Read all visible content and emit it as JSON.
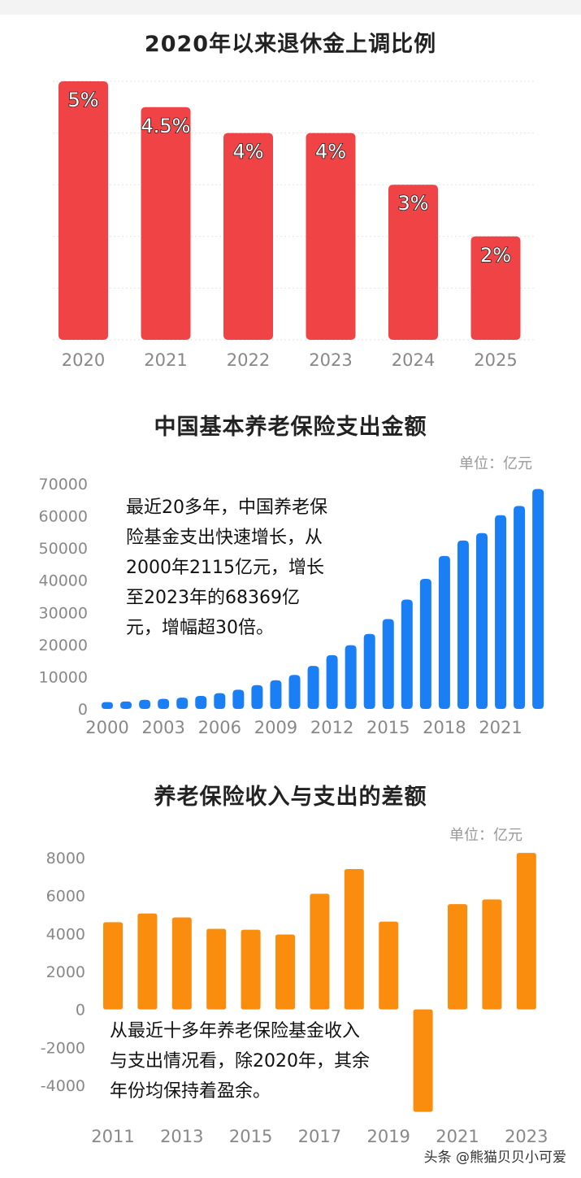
{
  "chart_data": [
    {
      "type": "bar",
      "title": "2020年以来退休金上调比例",
      "categories": [
        "2020",
        "2021",
        "2022",
        "2023",
        "2024",
        "2025"
      ],
      "values": [
        5,
        4.5,
        4,
        4,
        3,
        2
      ],
      "data_labels": [
        "5%",
        "4.5%",
        "4%",
        "4%",
        "3%",
        "2%"
      ],
      "ylim": [
        0,
        5
      ],
      "grid": true,
      "color": "#f04346"
    },
    {
      "type": "bar",
      "title": "中国基本养老保险支出金额",
      "unit": "单位：亿元",
      "x": [
        2000,
        2001,
        2002,
        2003,
        2004,
        2005,
        2006,
        2007,
        2008,
        2009,
        2010,
        2011,
        2012,
        2013,
        2014,
        2015,
        2016,
        2017,
        2018,
        2019,
        2020,
        2021,
        2022,
        2023
      ],
      "values": [
        2115,
        2321,
        2843,
        3122,
        3502,
        4040,
        4897,
        5965,
        7390,
        8894,
        10555,
        13363,
        16712,
        19819,
        23326,
        27929,
        34004,
        40424,
        47550,
        52342,
        54656,
        60197,
        63079,
        68369
      ],
      "x_tick_labels": [
        "2000",
        "2003",
        "2006",
        "2009",
        "2012",
        "2015",
        "2018",
        "2021"
      ],
      "y_ticks": [
        "70000",
        "60000",
        "50000",
        "40000",
        "30000",
        "20000",
        "10000",
        "0"
      ],
      "ylim": [
        0,
        70000
      ],
      "annotation": [
        "最近20多年，中国养老保",
        "险基金支出快速增长，从",
        "2000年2115亿元，增长",
        "至2023年的68369亿",
        "元，增幅超30倍。"
      ],
      "color": "#1a7ef5"
    },
    {
      "type": "bar",
      "title": "养老保险收入与支出的差额",
      "unit": "单位：亿元",
      "x": [
        2011,
        2012,
        2013,
        2014,
        2015,
        2016,
        2017,
        2018,
        2019,
        2020,
        2021,
        2022,
        2023
      ],
      "values": [
        4600,
        5060,
        4850,
        4250,
        4200,
        3950,
        6100,
        7400,
        4630,
        -5400,
        5550,
        5800,
        8250
      ],
      "x_tick_labels": [
        "2011",
        "2013",
        "2015",
        "2017",
        "2019",
        "2021",
        "2023"
      ],
      "y_ticks": [
        "8000",
        "6000",
        "4000",
        "2000",
        "0",
        "-2000",
        "-4000"
      ],
      "ylim": [
        -6000,
        8000
      ],
      "annotation": [
        "从最近十多年养老保险基金收入",
        "与支出情况看，除2020年，其余",
        "年份均保持着盈余。"
      ],
      "color": "#fa8c0e"
    }
  ],
  "watermark": "头条 @熊猫贝贝小可爱"
}
